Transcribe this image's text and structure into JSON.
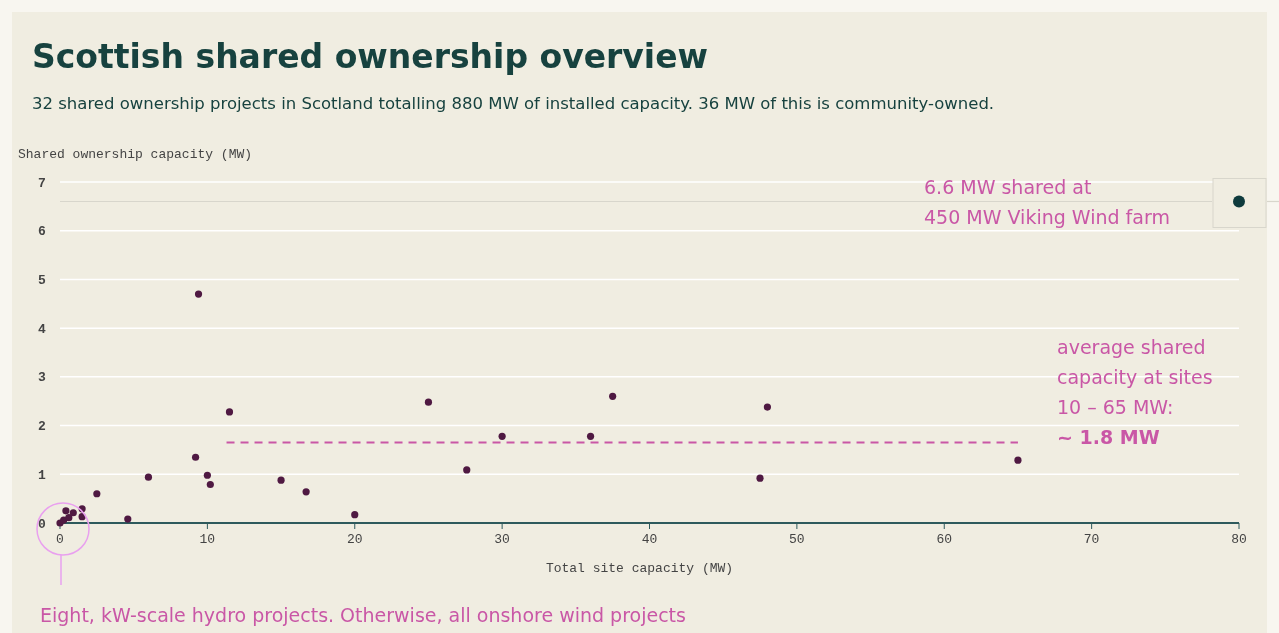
{
  "chart_data": {
    "type": "scatter",
    "title": "Scottish shared ownership overview",
    "subtitle": "32 shared ownership projects in Scotland totalling 880 MW of installed capacity. 36 MW of this is community-owned.",
    "xlabel": "Total site capacity (MW)",
    "ylabel": "Shared ownership capacity (MW)",
    "xlim": [
      0,
      80
    ],
    "xticks": [
      0,
      10,
      20,
      30,
      40,
      50,
      60,
      70,
      80
    ],
    "ylim": [
      0,
      7
    ],
    "yticks": [
      0,
      1,
      2,
      3,
      4,
      5,
      6,
      7
    ],
    "grid": "y",
    "marker": "circle",
    "series": [
      {
        "type": "scatter",
        "color": "#4f1942",
        "x": [
          0,
          0.25,
          0.4,
          0.6,
          0.9,
          1.5,
          1.5,
          2.5,
          4.6,
          6,
          9.2,
          9.4,
          10,
          10.2,
          11.5,
          15,
          16.7,
          20,
          25,
          27.6,
          30,
          36,
          37.5,
          47.5,
          48,
          65
        ],
        "values": [
          0,
          0.06,
          0.25,
          0.11,
          0.21,
          0.29,
          0.13,
          0.6,
          0.08,
          0.94,
          1.35,
          4.7,
          0.98,
          0.79,
          2.28,
          0.88,
          0.64,
          0.17,
          2.48,
          1.09,
          1.78,
          1.78,
          2.6,
          0.92,
          2.38,
          1.29
        ]
      },
      {
        "type": "line",
        "color": "#c957a6",
        "line_style": "dashed",
        "marker": "none",
        "x": [
          11.3,
          65
        ],
        "values": [
          1.65,
          1.65
        ]
      }
    ],
    "ref_lines": [
      {
        "axis": "y",
        "value": 6.6,
        "color": "#d8d6cc"
      }
    ],
    "annotations": [
      "6.6 MW shared at 450 MW Viking Wind farm",
      "average shared capacity at sites 10 – 65 MW: ~ 1.8 MW",
      "Eight, kW-scale hydro projects. Otherwise, all onshore wind projects"
    ]
  }
}
